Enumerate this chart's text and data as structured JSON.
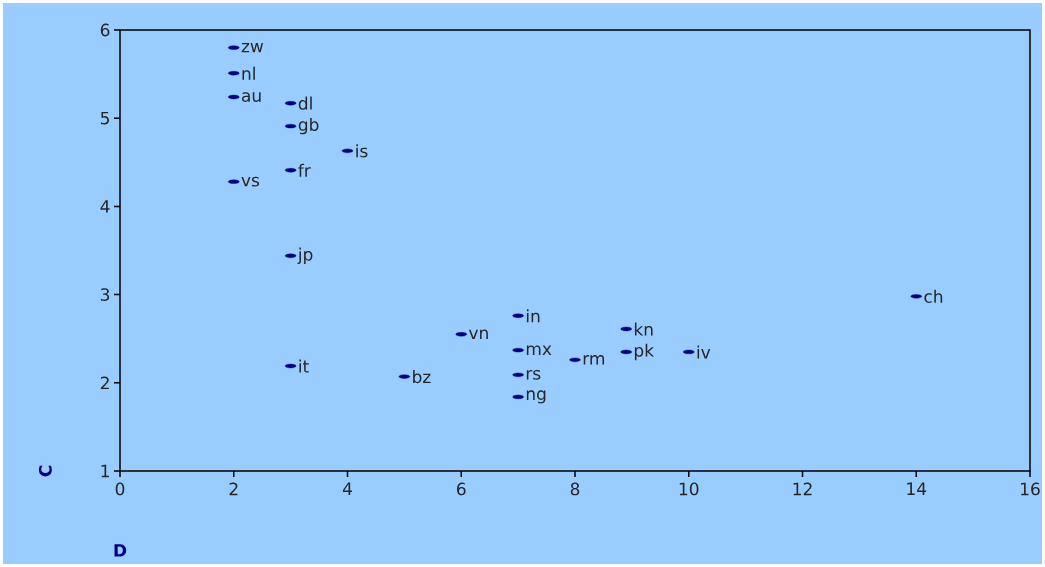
{
  "chart_data": {
    "type": "scatter",
    "xlabel": "D",
    "ylabel": "C",
    "x": [
      2,
      2,
      2,
      3,
      3,
      4,
      3,
      2,
      3,
      14,
      7,
      8.9,
      6,
      7,
      8.9,
      10,
      8,
      3,
      5,
      7,
      7
    ],
    "values": [
      5.8,
      5.51,
      5.24,
      5.17,
      4.91,
      4.63,
      4.41,
      4.28,
      3.44,
      2.98,
      2.76,
      2.61,
      2.55,
      2.37,
      2.35,
      2.35,
      2.26,
      2.19,
      2.07,
      2.09,
      1.84
    ],
    "color": "#000080",
    "annotations": [
      {
        "text": "zw",
        "x": 2,
        "y": 5.8
      },
      {
        "text": "nl",
        "x": 2,
        "y": 5.51
      },
      {
        "text": "au",
        "x": 2,
        "y": 5.24
      },
      {
        "text": "dl",
        "x": 3,
        "y": 5.17
      },
      {
        "text": "gb",
        "x": 3,
        "y": 4.91
      },
      {
        "text": "is",
        "x": 4,
        "y": 4.63
      },
      {
        "text": "fr",
        "x": 3,
        "y": 4.41
      },
      {
        "text": "vs",
        "x": 2,
        "y": 4.28
      },
      {
        "text": "jp",
        "x": 3,
        "y": 3.44
      },
      {
        "text": "ch",
        "x": 14,
        "y": 2.98
      },
      {
        "text": "in",
        "x": 7,
        "y": 2.76
      },
      {
        "text": "kn",
        "x": 8.9,
        "y": 2.61
      },
      {
        "text": "vn",
        "x": 6,
        "y": 2.55
      },
      {
        "text": "mx",
        "x": 7,
        "y": 2.37
      },
      {
        "text": "pk",
        "x": 8.9,
        "y": 2.35
      },
      {
        "text": "iv",
        "x": 10,
        "y": 2.35
      },
      {
        "text": "rm",
        "x": 8,
        "y": 2.26
      },
      {
        "text": "it",
        "x": 3,
        "y": 2.19
      },
      {
        "text": "bz",
        "x": 5,
        "y": 2.07
      },
      {
        "text": "rs",
        "x": 7,
        "y": 2.09
      },
      {
        "text": "ng",
        "x": 7,
        "y": 1.84
      }
    ],
    "xlim": [
      0,
      16
    ],
    "xticks": [
      0,
      2,
      4,
      6,
      8,
      10,
      12,
      14,
      16
    ],
    "ylim": [
      1,
      6
    ],
    "yticks": [
      1,
      2,
      3,
      4,
      5,
      6
    ],
    "grid": false
  }
}
